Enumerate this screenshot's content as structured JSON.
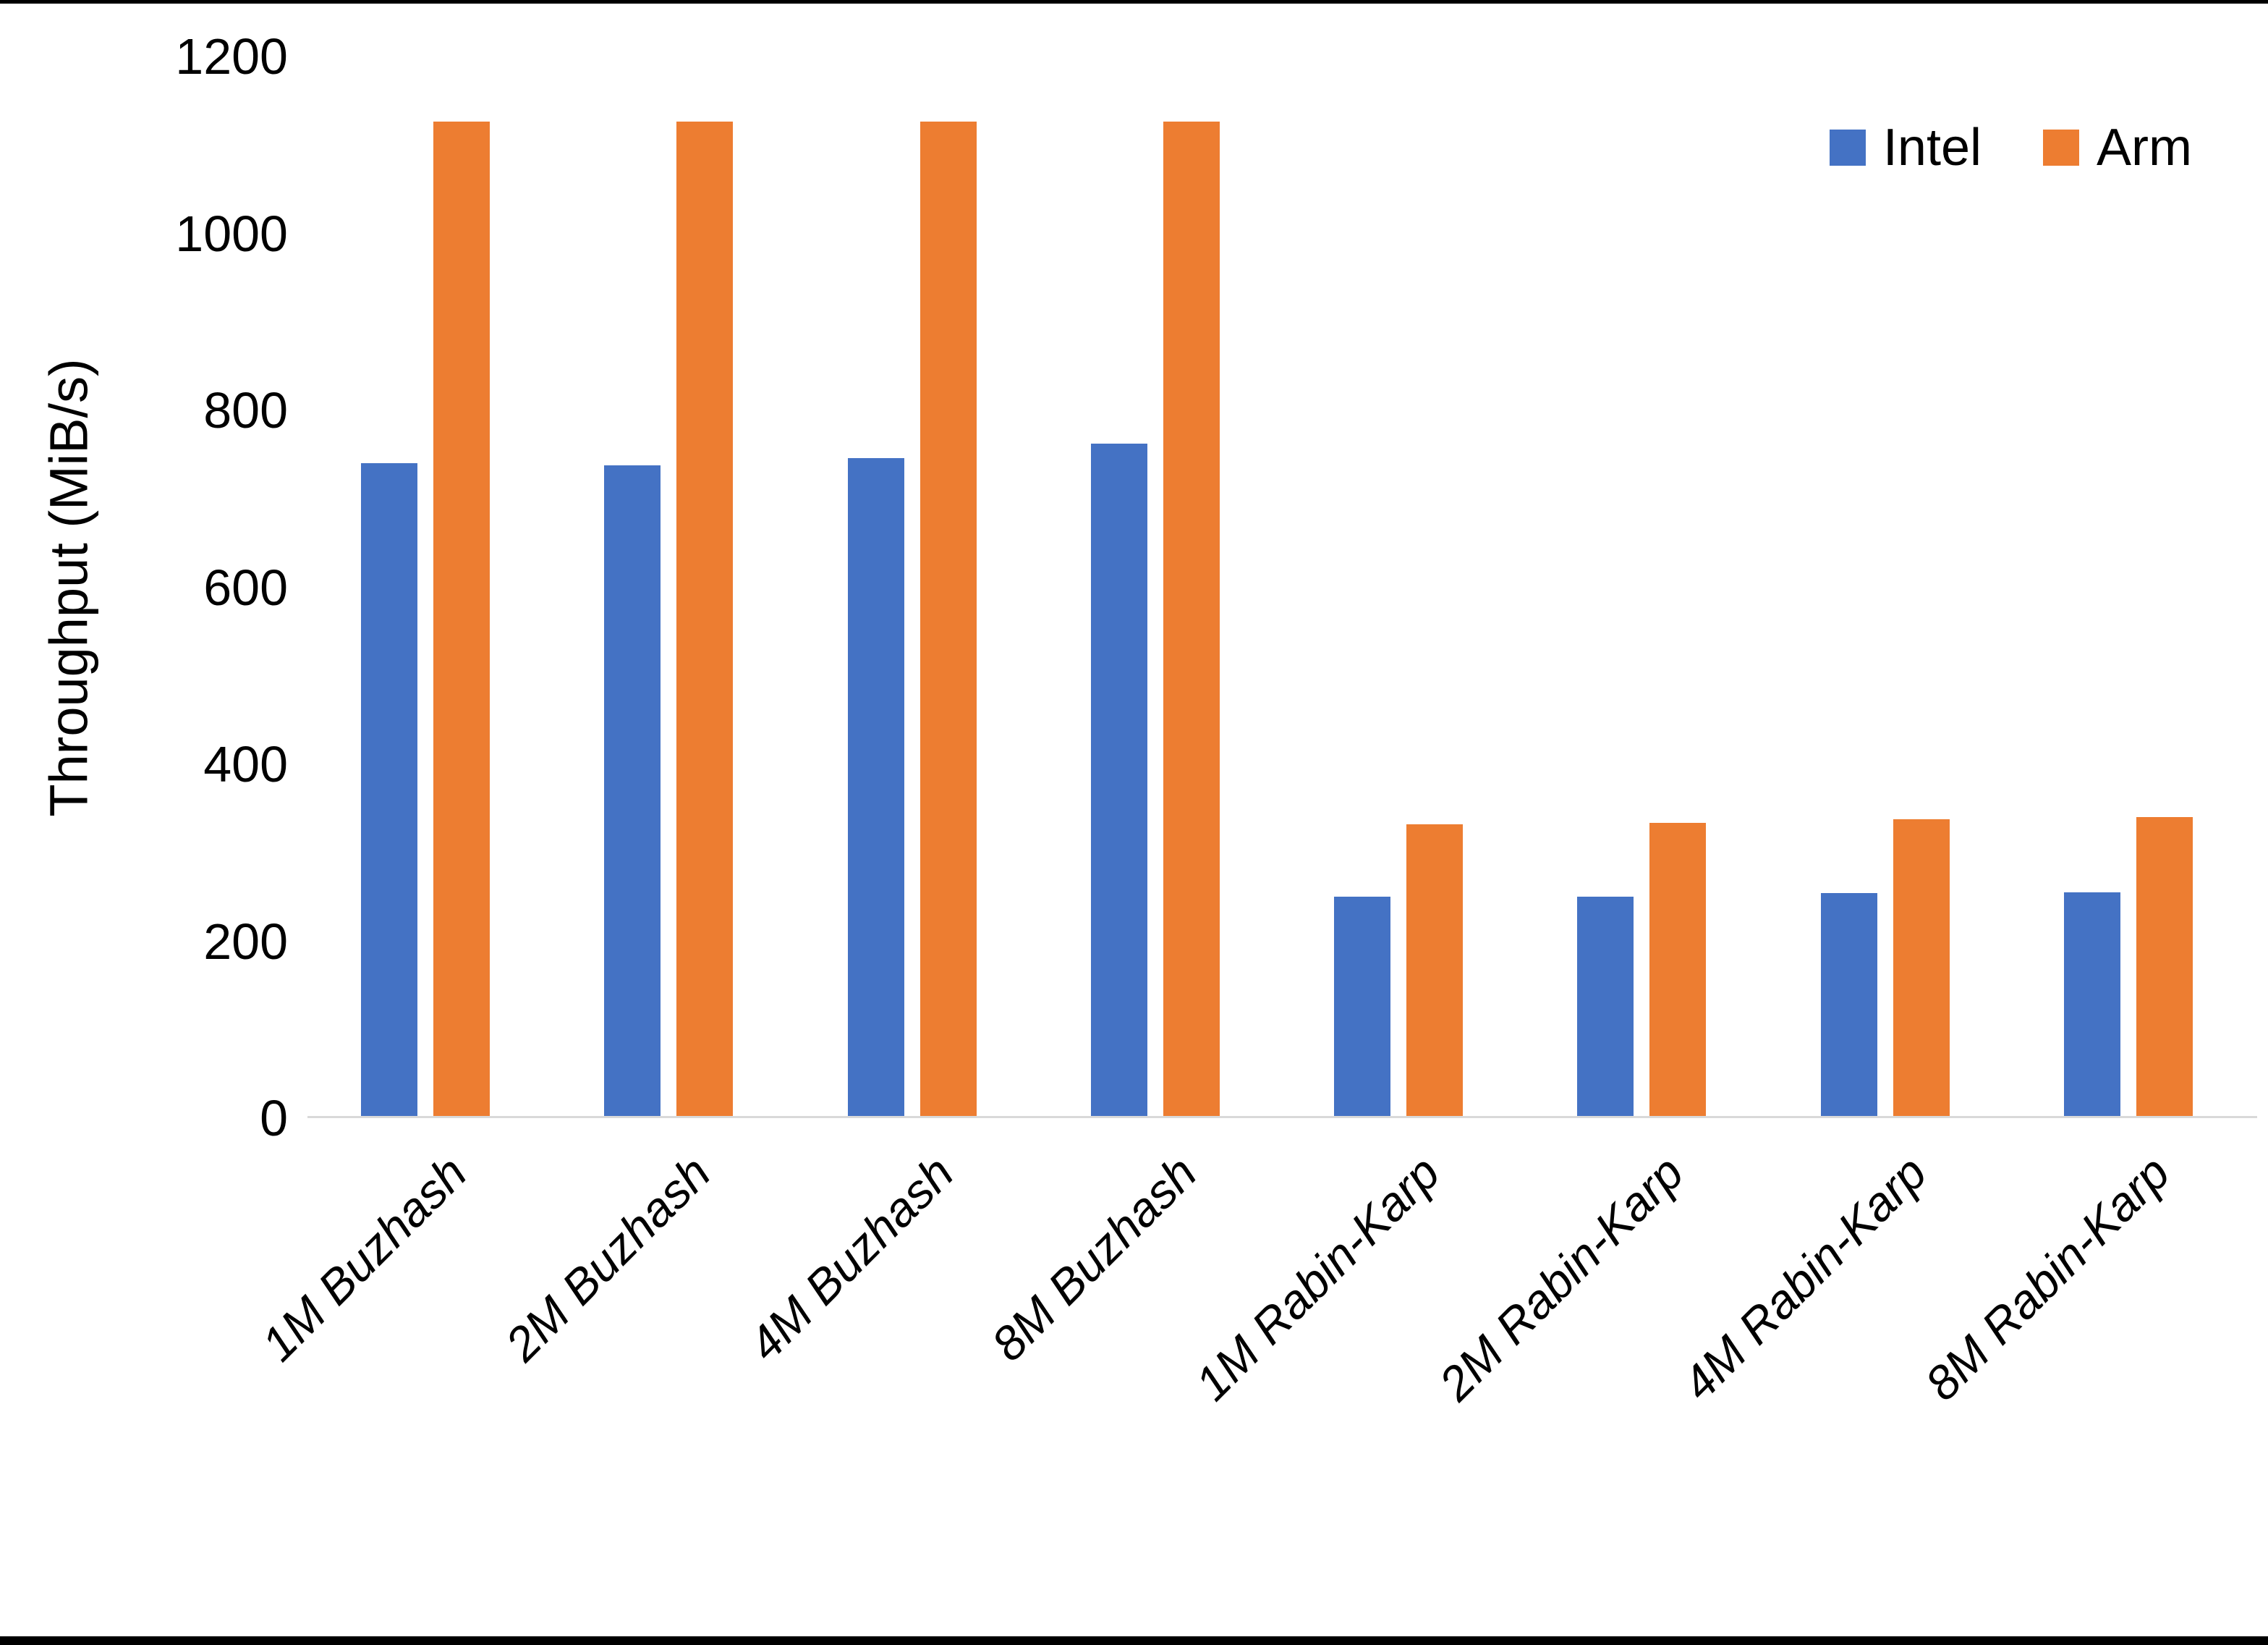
{
  "chart_data": {
    "type": "bar",
    "title": "",
    "categories": [
      "1M Buzhash",
      "2M Buzhash",
      "4M Buzhash",
      "8M Buzhash",
      "1M Rabin-Karp",
      "2M Rabin-Karp",
      "4M Rabin-Karp",
      "8M Rabin-Karp"
    ],
    "series": [
      {
        "name": "Intel",
        "color": "#4472C4",
        "values": [
          740,
          738,
          746,
          762,
          250,
          250,
          254,
          255
        ]
      },
      {
        "name": "Arm",
        "color": "#ED7D31",
        "values": [
          1126,
          1126,
          1126,
          1126,
          332,
          334,
          338,
          340
        ]
      }
    ],
    "xlabel": "",
    "ylabel": "Throughput (MiB/s)",
    "ylim": [
      0,
      1200
    ],
    "yticks": [
      0,
      200,
      400,
      600,
      800,
      1000,
      1200
    ],
    "grid": false,
    "legend_position": "top-right"
  },
  "colors": {
    "axis_line": "#d9d9d9",
    "text": "#000000",
    "frame_border": "#000000",
    "background": "#ffffff"
  }
}
